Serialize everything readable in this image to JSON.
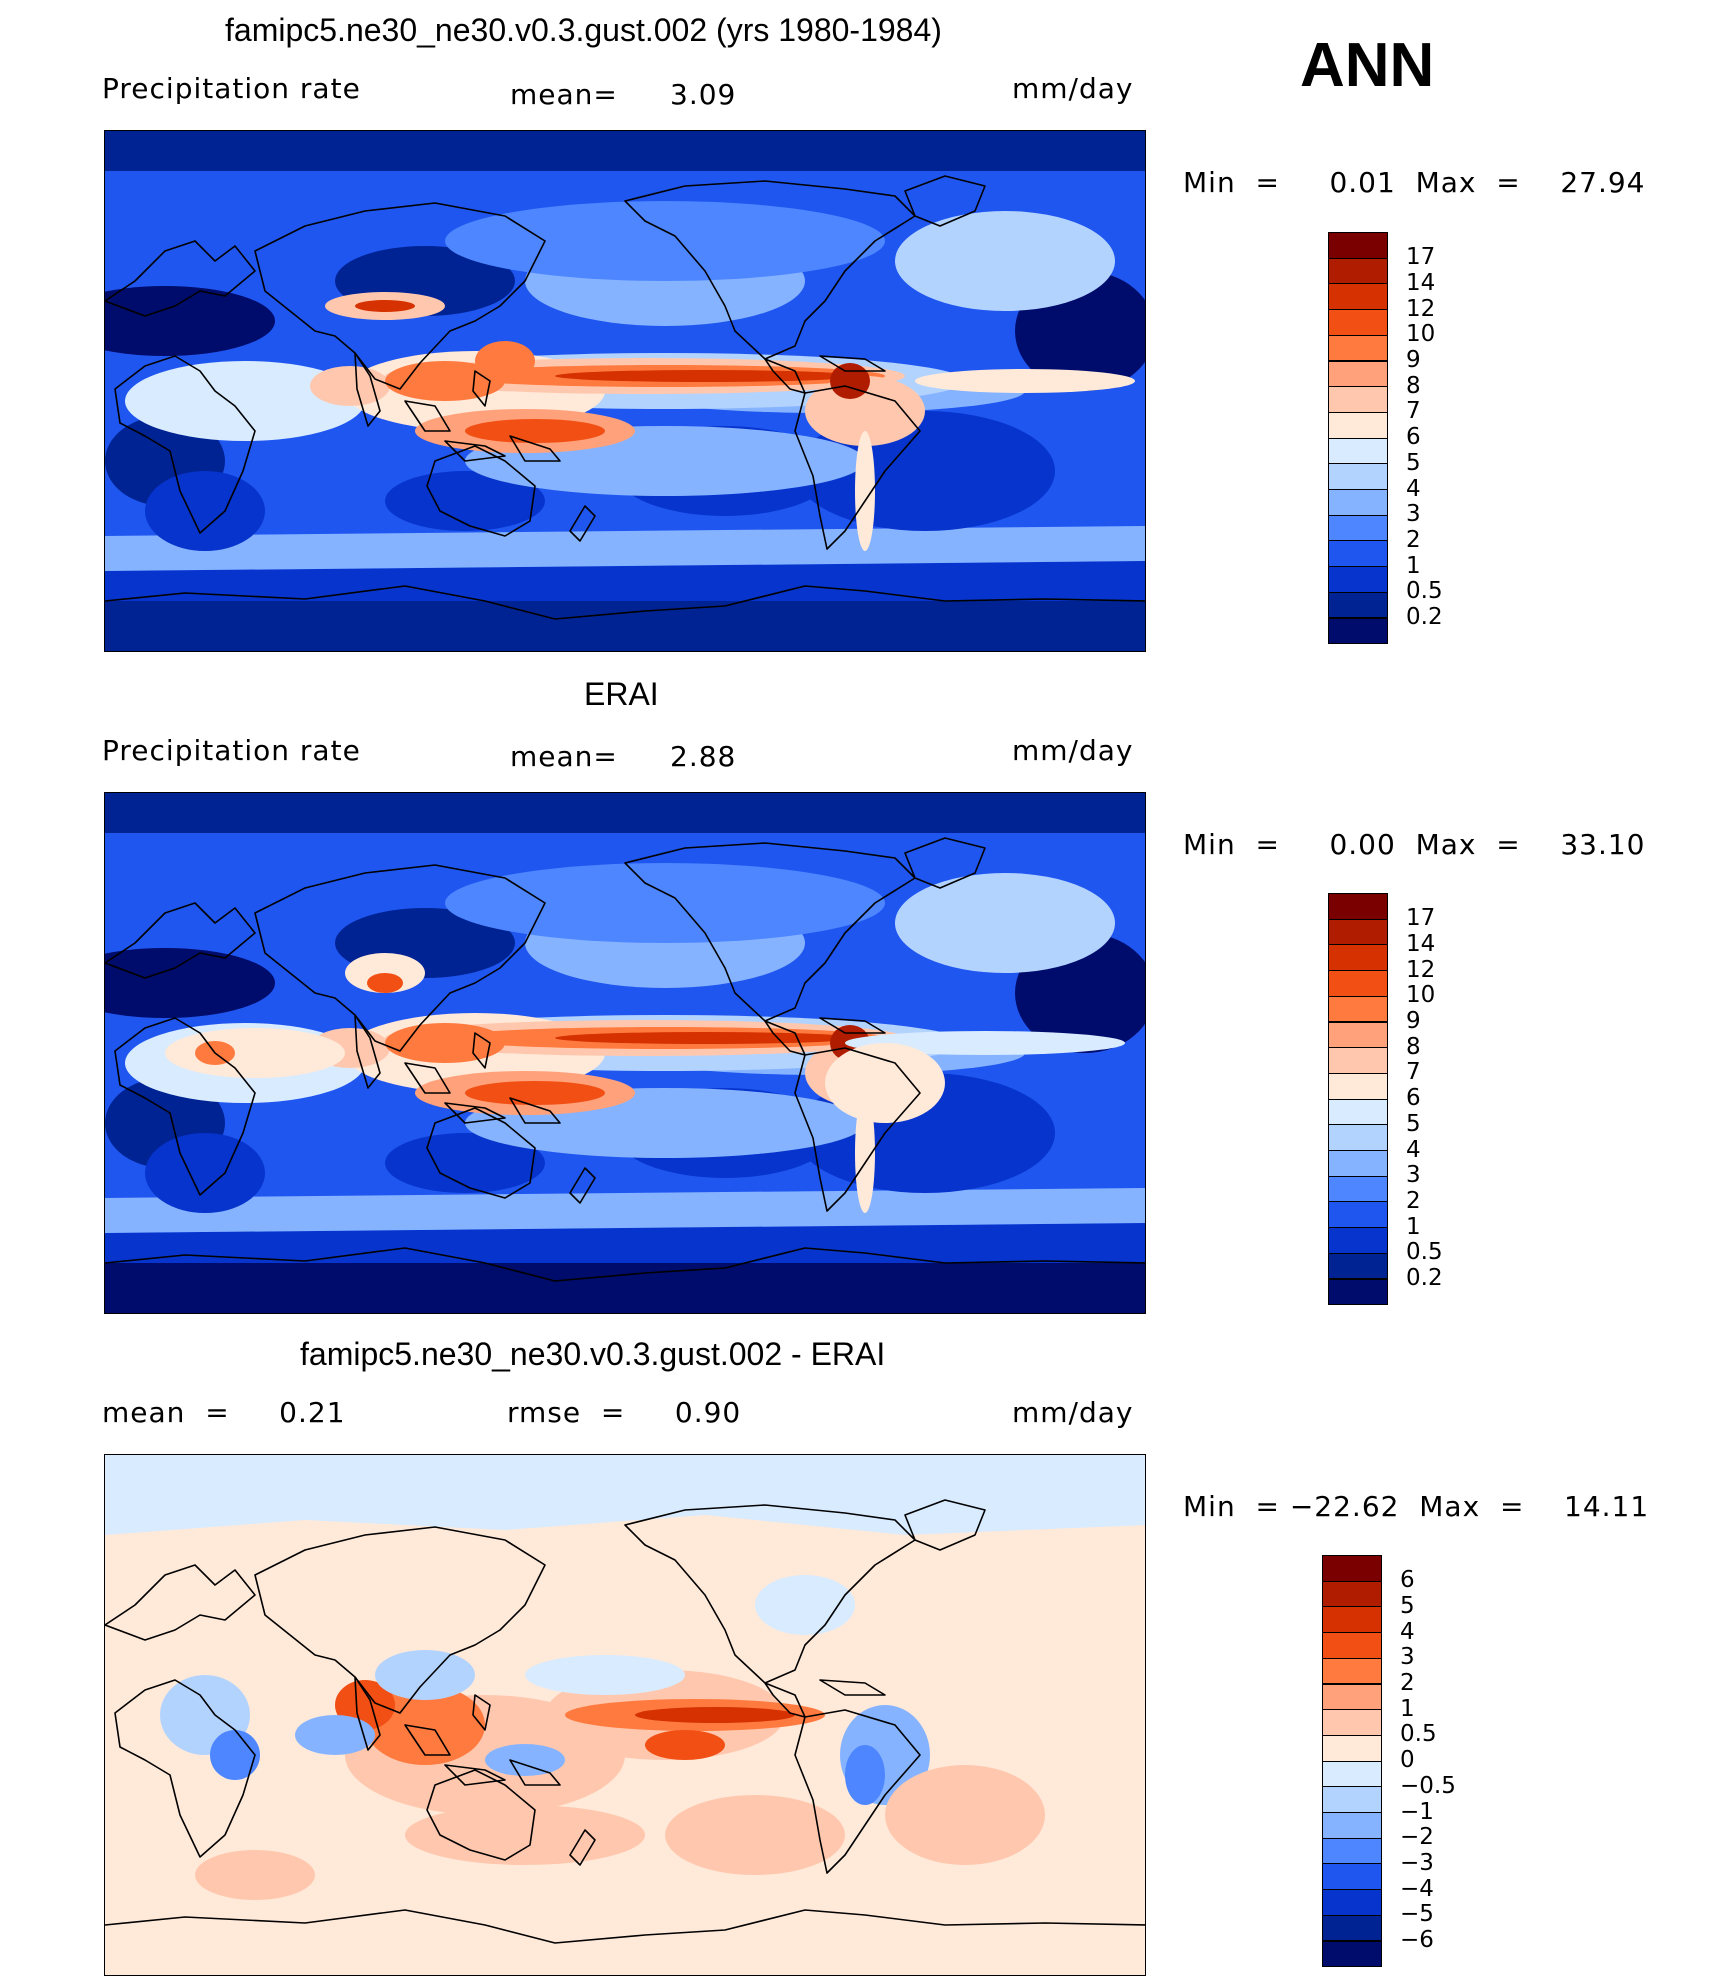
{
  "season": "ANN",
  "panels": [
    {
      "title": "famipc5.ne30_ne30.v0.3.gust.002 (yrs 1980-1984)",
      "left_label": "Precipitation  rate",
      "mid_label": "mean=",
      "mid_value": "3.09",
      "units": "mm/day",
      "minmax": "Min  =     0.01  Max  =    27.94",
      "colorbar": {
        "levels": [
          "17",
          "14",
          "12",
          "10",
          "9",
          "8",
          "7",
          "6",
          "5",
          "4",
          "3",
          "2",
          "1",
          "0.5",
          "0.2"
        ],
        "colors": [
          "#7a0000",
          "#b01c00",
          "#d63100",
          "#f24f14",
          "#ff7a3f",
          "#ffa27b",
          "#ffc8ae",
          "#ffe9d9",
          "#d8ebff",
          "#b3d3ff",
          "#85b3ff",
          "#4d86ff",
          "#1f56f0",
          "#0634cc",
          "#002394",
          "#000c6b"
        ]
      },
      "map_mode": "model"
    },
    {
      "title": "ERAI",
      "left_label": "Precipitation  rate",
      "mid_label": "mean=",
      "mid_value": "2.88",
      "units": "mm/day",
      "minmax": "Min  =     0.00  Max  =    33.10",
      "colorbar": {
        "levels": [
          "17",
          "14",
          "12",
          "10",
          "9",
          "8",
          "7",
          "6",
          "5",
          "4",
          "3",
          "2",
          "1",
          "0.5",
          "0.2"
        ],
        "colors": [
          "#7a0000",
          "#b01c00",
          "#d63100",
          "#f24f14",
          "#ff7a3f",
          "#ffa27b",
          "#ffc8ae",
          "#ffe9d9",
          "#d8ebff",
          "#b3d3ff",
          "#85b3ff",
          "#4d86ff",
          "#1f56f0",
          "#0634cc",
          "#002394",
          "#000c6b"
        ]
      },
      "map_mode": "obs"
    },
    {
      "title": "famipc5.ne30_ne30.v0.3.gust.002 - ERAI",
      "left_label": "mean  =     0.21",
      "mid_label": "rmse  =     0.90",
      "mid_value": "",
      "units": "mm/day",
      "minmax": "Min  = −22.62  Max  =    14.11",
      "colorbar": {
        "levels": [
          "6",
          "5",
          "4",
          "3",
          "2",
          "1",
          "0.5",
          "0",
          "−0.5",
          "−1",
          "−2",
          "−3",
          "−4",
          "−5",
          "−6"
        ],
        "colors": [
          "#7a0000",
          "#b01c00",
          "#d63100",
          "#f24f14",
          "#ff7a3f",
          "#ffa27b",
          "#ffc8ae",
          "#ffe9d9",
          "#d8ebff",
          "#b3d3ff",
          "#85b3ff",
          "#4d86ff",
          "#1f56f0",
          "#0634cc",
          "#002394",
          "#000c6b"
        ]
      },
      "map_mode": "diff"
    }
  ]
}
